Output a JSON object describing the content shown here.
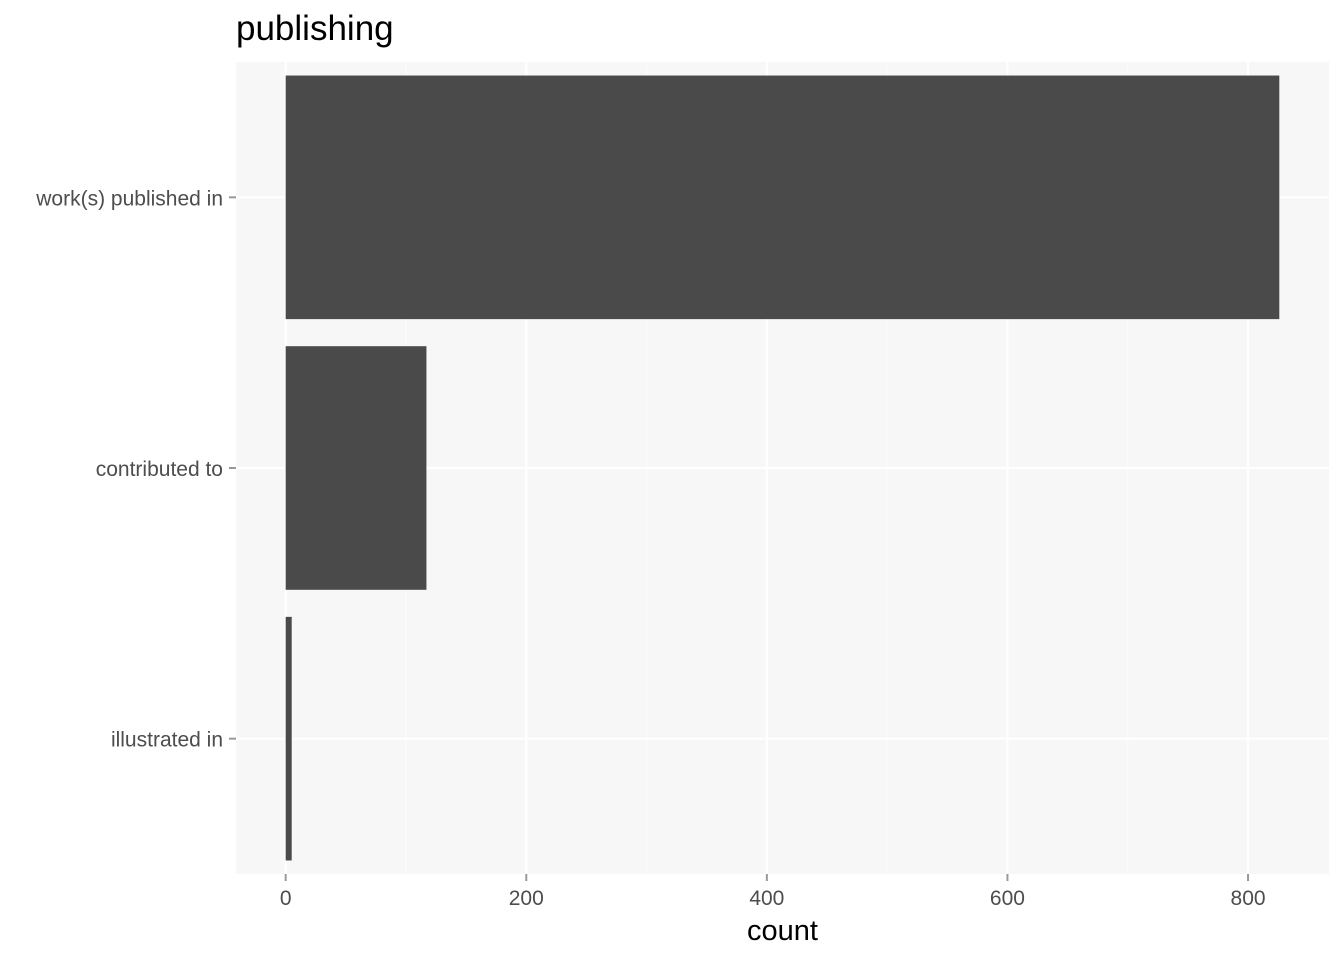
{
  "chart_data": {
    "type": "bar",
    "orientation": "horizontal",
    "title": "publishing",
    "xlabel": "count",
    "ylabel": "",
    "categories": [
      "work(s) published in",
      "contributed to",
      "illustrated in"
    ],
    "values": [
      826,
      117,
      5
    ],
    "xlim": [
      -41.3,
      867.3
    ],
    "xticks": [
      0,
      200,
      400,
      600,
      800
    ],
    "xtick_labels": [
      "0",
      "200",
      "400",
      "600",
      "800"
    ],
    "grid": true,
    "legend": "none",
    "colors": {
      "panel_background": "#f7f7f7",
      "grid_major": "#ffffff",
      "grid_minor": "#fbfbfb",
      "bar_fill": "#4a4a4a",
      "tick_label": "#4d4d4d",
      "tick_mark": "#999999"
    }
  }
}
